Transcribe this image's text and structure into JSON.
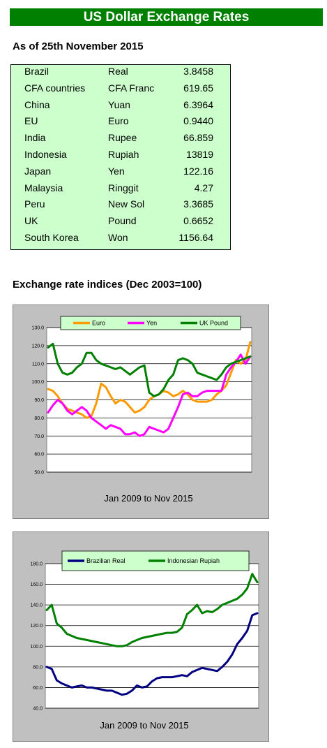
{
  "header": {
    "title": "US Dollar Exchange Rates"
  },
  "rates": {
    "as_of": "As of 25th November 2015",
    "rows": [
      {
        "country": "Brazil",
        "currency": "Real",
        "rate": "3.8458"
      },
      {
        "country": "CFA countries",
        "currency": "CFA Franc",
        "rate": "619.65"
      },
      {
        "country": "China",
        "currency": "Yuan",
        "rate": "6.3964"
      },
      {
        "country": "EU",
        "currency": "Euro",
        "rate": "0.9440"
      },
      {
        "country": "India",
        "currency": "Rupee",
        "rate": "66.859"
      },
      {
        "country": "Indonesia",
        "currency": "Rupiah",
        "rate": "13819"
      },
      {
        "country": "Japan",
        "currency": "Yen",
        "rate": "122.16"
      },
      {
        "country": "Malaysia",
        "currency": "Ringgit",
        "rate": "4.27"
      },
      {
        "country": "Peru",
        "currency": "New Sol",
        "rate": "3.3685"
      },
      {
        "country": "UK",
        "currency": "Pound",
        "rate": "0.6652"
      },
      {
        "country": "South Korea",
        "currency": "Won",
        "rate": "1156.64"
      }
    ]
  },
  "indices": {
    "heading": "Exchange rate indices (Dec 2003=100)"
  },
  "chart_data": [
    {
      "type": "line",
      "xlabel": "Jan 2009 to Nov 2015",
      "ylim": [
        50,
        130
      ],
      "yticks": [
        "50.0",
        "60.0",
        "70.0",
        "80.0",
        "90.0",
        "100.0",
        "110.0",
        "120.0",
        "130.0"
      ],
      "grid": true,
      "legend_position": "top",
      "series": [
        {
          "name": "Euro",
          "color": "#ff9900",
          "values": [
            96,
            95,
            92,
            88,
            85,
            84,
            83,
            82,
            80,
            81,
            88,
            99,
            97,
            92,
            88,
            90,
            89,
            86,
            83,
            84,
            86,
            90,
            92,
            93,
            95,
            94,
            92,
            93,
            95,
            93,
            90,
            89,
            89,
            89,
            90,
            93,
            95,
            98,
            105,
            112,
            110,
            112,
            122
          ]
        },
        {
          "name": "Yen",
          "color": "#ff00ff",
          "values": [
            83,
            87,
            90,
            88,
            84,
            82,
            84,
            86,
            84,
            80,
            78,
            76,
            74,
            76,
            75,
            74,
            71,
            71,
            72,
            70,
            71,
            75,
            74,
            73,
            72,
            74,
            80,
            86,
            93,
            94,
            92,
            92,
            94,
            95,
            95,
            95,
            95,
            104,
            108,
            111,
            115,
            110,
            114
          ]
        },
        {
          "name": "UK Pound",
          "color": "#008000",
          "values": [
            119,
            121,
            110,
            105,
            104,
            105,
            108,
            110,
            116,
            116,
            112,
            110,
            109,
            108,
            107,
            108,
            106,
            104,
            106,
            108,
            109,
            94,
            92,
            93,
            96,
            101,
            104,
            112,
            113,
            112,
            110,
            105,
            104,
            103,
            102,
            101,
            104,
            108,
            110,
            111,
            112,
            113,
            114
          ]
        }
      ]
    },
    {
      "type": "line",
      "xlabel": "Jan 2009 to Nov 2015",
      "ylim": [
        40,
        180
      ],
      "yticks": [
        "40.0",
        "60.0",
        "80.0",
        "100.0",
        "120.0",
        "140.0",
        "160.0",
        "180.0"
      ],
      "grid": true,
      "legend_position": "top",
      "series": [
        {
          "name": "Brazilian Real",
          "color": "#000080",
          "values": [
            80,
            78,
            67,
            64,
            62,
            60,
            61,
            62,
            60,
            60,
            59,
            58,
            57,
            57,
            55,
            53,
            54,
            57,
            62,
            60,
            61,
            66,
            69,
            70,
            70,
            70,
            71,
            72,
            71,
            75,
            77,
            79,
            78,
            77,
            76,
            80,
            85,
            92,
            102,
            108,
            115,
            130,
            132
          ]
        },
        {
          "name": "Indonesian Rupiah",
          "color": "#008000",
          "values": [
            135,
            140,
            122,
            118,
            112,
            110,
            108,
            107,
            106,
            105,
            104,
            103,
            102,
            101,
            100,
            100,
            101,
            104,
            106,
            108,
            109,
            110,
            111,
            112,
            113,
            113,
            114,
            118,
            131,
            135,
            140,
            132,
            134,
            133,
            136,
            140,
            142,
            144,
            146,
            150,
            156,
            170,
            162
          ]
        }
      ]
    }
  ]
}
